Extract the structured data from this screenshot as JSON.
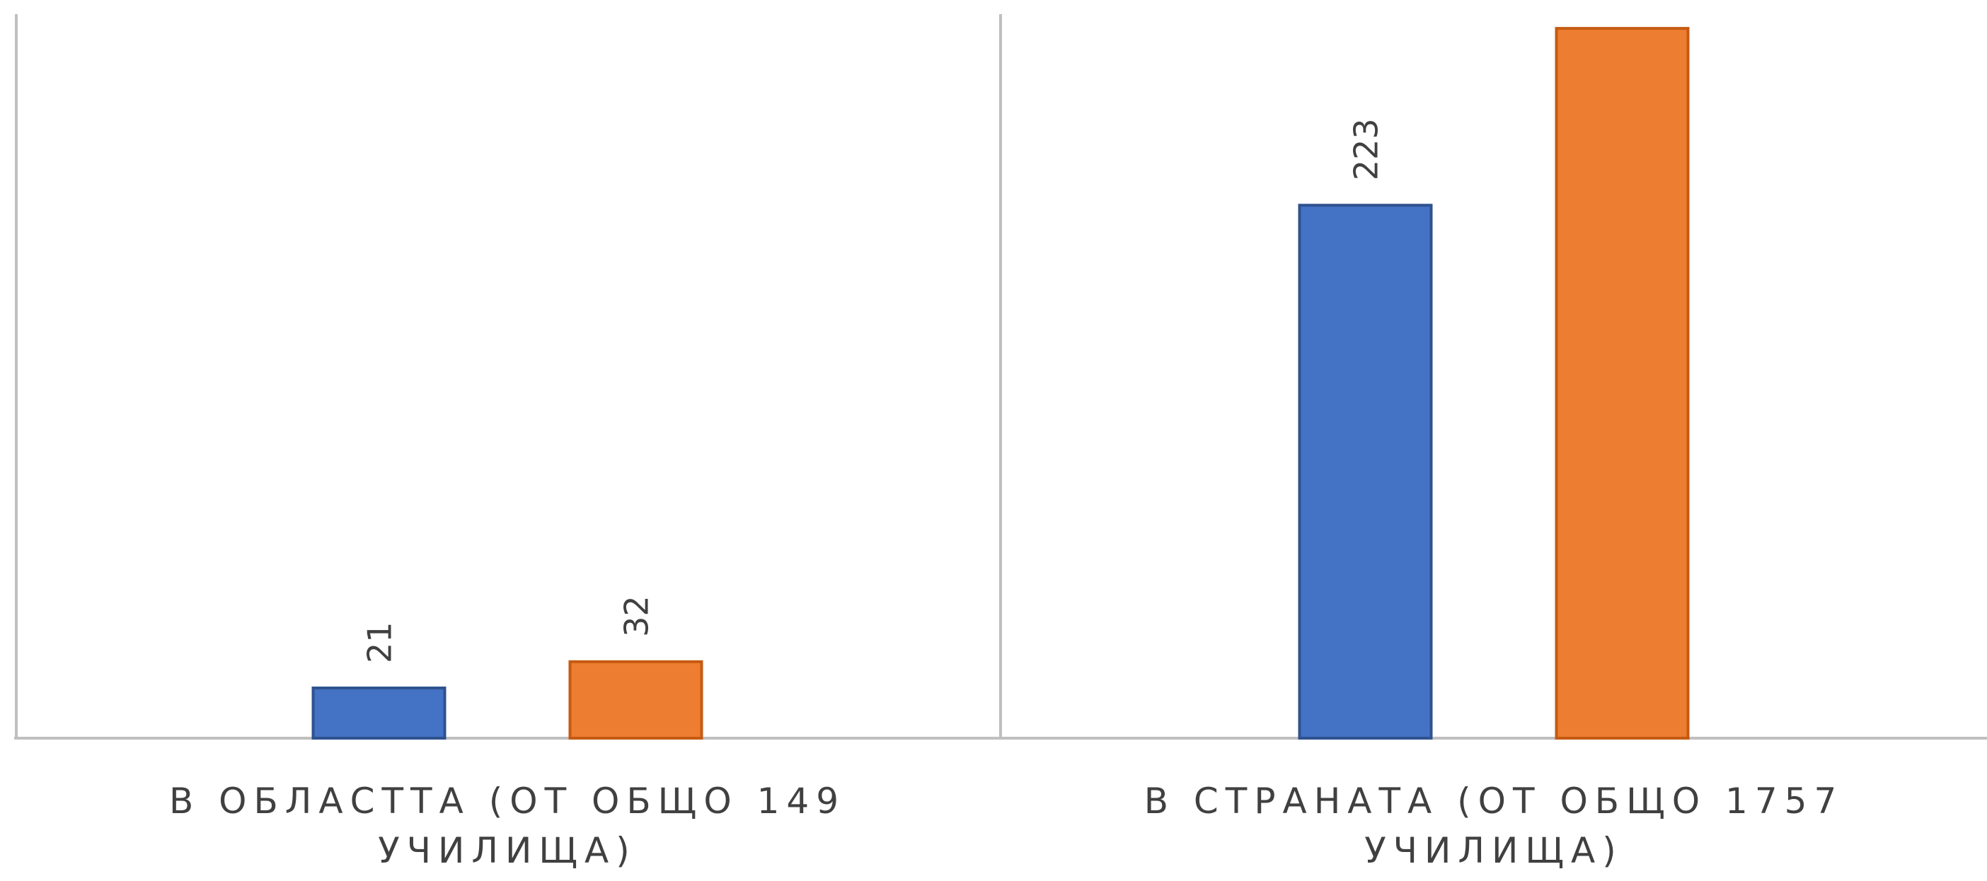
{
  "chart_data": {
    "type": "bar",
    "categories": [
      "В ОБЛАСТТА (ОТ ОБЩО 149 УЧИЛИЩА)",
      "В СТРАНАТА (ОТ ОБЩО 1757 УЧИЛИЩА)"
    ],
    "category_label_lines": [
      [
        "В ОБЛАСТТА (ОТ ОБЩО 149",
        "УЧИЛИЩА)"
      ],
      [
        "В СТРАНАТА (ОТ ОБЩО 1757",
        "УЧИЛИЩА)"
      ]
    ],
    "series": [
      {
        "color": "#4472C4",
        "border": "#2F528F",
        "values": [
          21,
          223
        ],
        "labels": [
          "21",
          "223"
        ]
      },
      {
        "color": "#ED7D31",
        "border": "#C55A11",
        "values": [
          32,
          297
        ],
        "labels": [
          "32",
          ""
        ]
      }
    ],
    "ylim": [
      0,
      300
    ],
    "category_separators": true,
    "legend": "none",
    "axis_color": "#BFBFBF"
  }
}
